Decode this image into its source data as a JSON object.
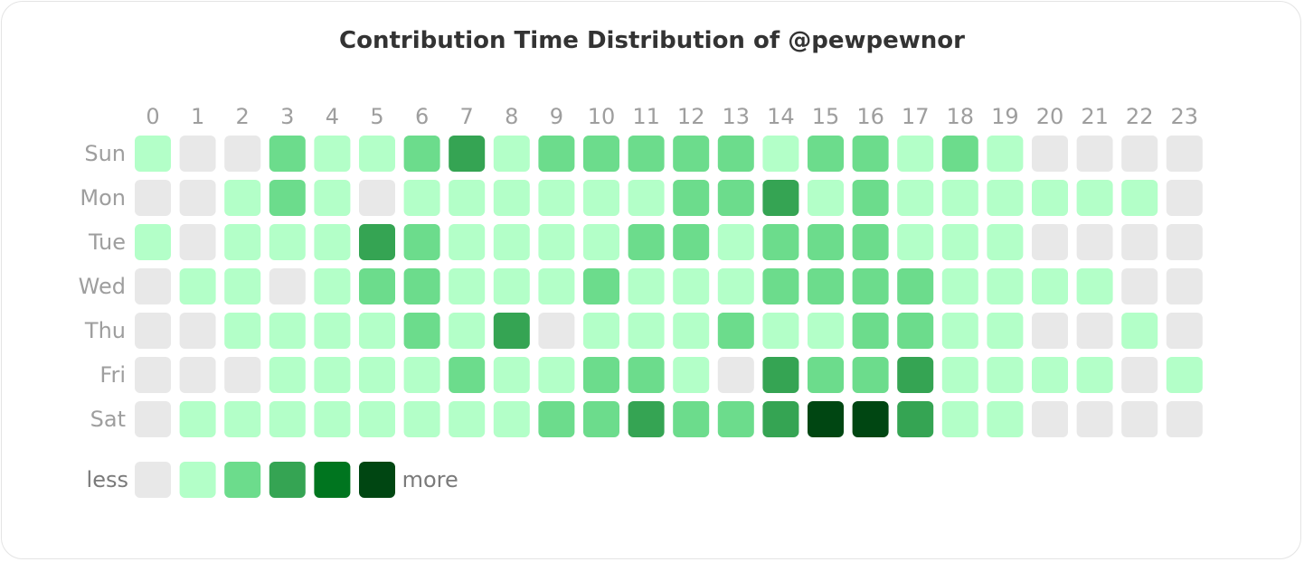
{
  "chart_data": {
    "type": "heatmap",
    "title": "Contribution Time Distribution of @pewpewnor",
    "x_labels": [
      "0",
      "1",
      "2",
      "3",
      "4",
      "5",
      "6",
      "7",
      "8",
      "9",
      "10",
      "11",
      "12",
      "13",
      "14",
      "15",
      "16",
      "17",
      "18",
      "19",
      "20",
      "21",
      "22",
      "23"
    ],
    "y_labels": [
      "Sun",
      "Mon",
      "Tue",
      "Wed",
      "Thu",
      "Fri",
      "Sat"
    ],
    "levels": [
      [
        1,
        0,
        0,
        2,
        1,
        1,
        2,
        3,
        1,
        2,
        2,
        2,
        2,
        2,
        1,
        2,
        2,
        1,
        2,
        1,
        0,
        0,
        0,
        0
      ],
      [
        0,
        0,
        1,
        2,
        1,
        0,
        1,
        1,
        1,
        1,
        1,
        1,
        2,
        2,
        3,
        1,
        2,
        1,
        1,
        1,
        1,
        1,
        1,
        0
      ],
      [
        1,
        0,
        1,
        1,
        1,
        3,
        2,
        1,
        1,
        1,
        1,
        2,
        2,
        1,
        2,
        2,
        2,
        1,
        1,
        1,
        0,
        0,
        0,
        0
      ],
      [
        0,
        1,
        1,
        0,
        1,
        2,
        2,
        1,
        1,
        1,
        2,
        1,
        1,
        1,
        2,
        2,
        2,
        2,
        1,
        1,
        1,
        1,
        0,
        0
      ],
      [
        0,
        0,
        1,
        1,
        1,
        1,
        2,
        1,
        3,
        0,
        1,
        1,
        1,
        2,
        1,
        1,
        2,
        2,
        1,
        1,
        0,
        0,
        1,
        0
      ],
      [
        0,
        0,
        0,
        1,
        1,
        1,
        1,
        2,
        1,
        1,
        2,
        2,
        1,
        0,
        3,
        2,
        2,
        3,
        1,
        1,
        1,
        1,
        0,
        1
      ],
      [
        0,
        1,
        1,
        1,
        1,
        1,
        1,
        1,
        1,
        2,
        2,
        3,
        2,
        2,
        3,
        5,
        5,
        3,
        1,
        1,
        0,
        0,
        0,
        0
      ]
    ],
    "level_colors": [
      "#e8e8e8",
      "#b3ffc8",
      "#6cdc8c",
      "#35a453",
      "#00751f",
      "#004612"
    ],
    "legend": {
      "less_label": "less",
      "more_label": "more"
    }
  }
}
